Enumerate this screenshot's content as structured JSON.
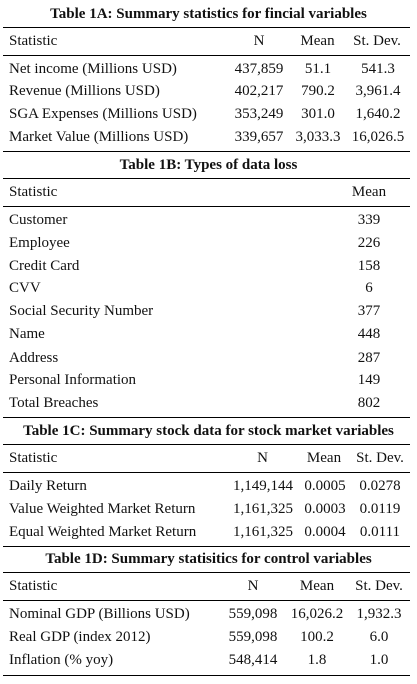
{
  "tables": [
    {
      "title": "Table 1A: Summary statistics for fincial variables",
      "headers": [
        "Statistic",
        "N",
        "Mean",
        "St. Dev."
      ],
      "rows": [
        [
          "Net income (Millions USD)",
          "437,859",
          "51.1",
          "541.3"
        ],
        [
          "Revenue (Millions USD)",
          "402,217",
          "790.2",
          "3,961.4"
        ],
        [
          "SGA Expenses (Millions USD)",
          "353,249",
          "301.0",
          "1,640.2"
        ],
        [
          "Market Value (Millions USD)",
          "339,657",
          "3,033.3",
          "16,026.5"
        ]
      ]
    },
    {
      "title": "Table 1B: Types of data loss",
      "headers": [
        "Statistic",
        "Mean"
      ],
      "rows": [
        [
          "Customer",
          "339"
        ],
        [
          "Employee",
          "226"
        ],
        [
          "Credit Card",
          "158"
        ],
        [
          "CVV",
          "6"
        ],
        [
          "Social Security Number",
          "377"
        ],
        [
          "Name",
          "448"
        ],
        [
          "Address",
          "287"
        ],
        [
          "Personal Information",
          "149"
        ],
        [
          "Total Breaches",
          "802"
        ]
      ]
    },
    {
      "title": "Table 1C: Summary stock data for stock market variables",
      "headers": [
        "Statistic",
        "N",
        "Mean",
        "St. Dev."
      ],
      "rows": [
        [
          "Daily Return",
          "1,149,144",
          "0.0005",
          "0.0278"
        ],
        [
          "Value Weighted Market Return",
          "1,161,325",
          "0.0003",
          "0.0119"
        ],
        [
          "Equal Weighted Market Return",
          "1,161,325",
          "0.0004",
          "0.0111"
        ]
      ]
    },
    {
      "title": "Table 1D: Summary statisitics for control variables",
      "headers": [
        "Statistic",
        "N",
        "Mean",
        "St. Dev."
      ],
      "rows": [
        [
          "Nominal GDP (Billions USD)",
          "559,098",
          "16,026.2",
          "1,932.3"
        ],
        [
          "Real GDP (index 2012)",
          "559,098",
          "100.2",
          "6.0"
        ],
        [
          "Inflation (% yoy)",
          "548,414",
          "1.8",
          "1.0"
        ]
      ]
    }
  ]
}
